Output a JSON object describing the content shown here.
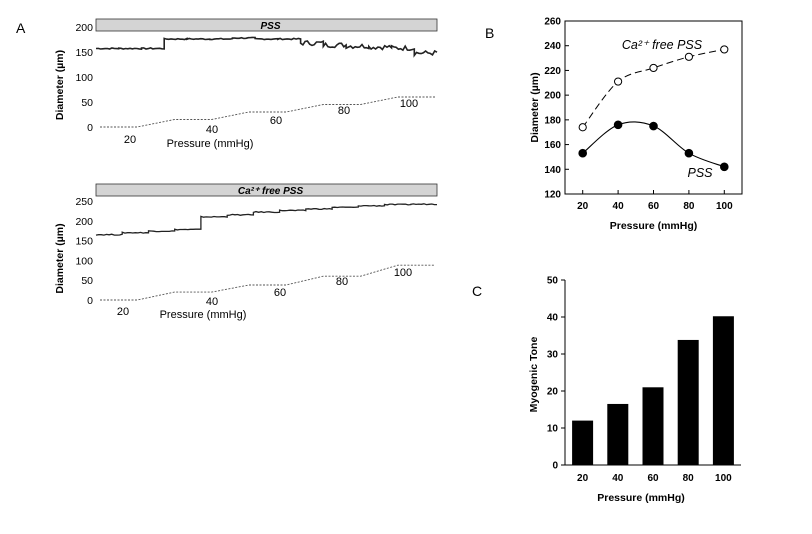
{
  "panels": {
    "a_label": "A",
    "b_label": "B",
    "c_label": "C"
  },
  "colors": {
    "trace": "#222222",
    "pressure_step": "#555555",
    "banner_fill": "#d4d4d4",
    "bar_fill": "#000000"
  },
  "chart_data": [
    {
      "type": "line",
      "panel": "A",
      "title": "PSS",
      "ylabel": "Diameter (µm)",
      "xlabel": "Pressure (mmHg)",
      "yticks": [
        0,
        50,
        100,
        150,
        200
      ],
      "ylim": [
        0,
        200
      ],
      "pressure_labels": [
        "20",
        "40",
        "60",
        "80",
        "100"
      ],
      "series": [
        {
          "values": [
            157,
            157,
            157,
            176,
            176,
            176,
            178,
            176,
            176,
            168,
            164,
            162,
            160,
            158,
            148
          ]
        },
        {
          "values": [
            0,
            0,
            15,
            15,
            30,
            30,
            45,
            45,
            60,
            60
          ]
        }
      ]
    },
    {
      "type": "line",
      "panel": "A",
      "title": "Ca²⁺ free PSS",
      "ylabel": "Diameter (µm)",
      "xlabel": "Pressure (mmHg)",
      "yticks": [
        0,
        50,
        100,
        150,
        200,
        250
      ],
      "ylim": [
        0,
        250
      ],
      "pressure_labels": [
        "20",
        "40",
        "60",
        "80",
        "100"
      ],
      "series": [
        {
          "values": [
            165,
            170,
            174,
            178,
            210,
            215,
            222,
            226,
            230,
            234,
            238,
            241,
            242
          ]
        },
        {
          "values": [
            0,
            0,
            20,
            20,
            38,
            38,
            60,
            60,
            88,
            88
          ]
        }
      ]
    },
    {
      "type": "line",
      "panel": "B",
      "xlabel": "Pressure (mmHg)",
      "ylabel": "Diameter (µm)",
      "x": [
        20,
        40,
        60,
        80,
        100
      ],
      "xlim": [
        10,
        110
      ],
      "ylim": [
        120,
        260
      ],
      "yticks": [
        120,
        140,
        160,
        180,
        200,
        220,
        240,
        260
      ],
      "series": [
        {
          "name": "Ca²⁺ free PSS",
          "values": [
            174,
            211,
            222,
            231,
            237
          ]
        },
        {
          "name": "PSS",
          "values": [
            153,
            176,
            175,
            153,
            142
          ]
        }
      ]
    },
    {
      "type": "bar",
      "panel": "C",
      "xlabel": "Pressure (mmHg)",
      "ylabel": "Myogenic Tone",
      "categories": [
        "20",
        "40",
        "60",
        "80",
        "100"
      ],
      "values": [
        12,
        16.5,
        21,
        33.8,
        40.2
      ],
      "ylim": [
        0,
        50
      ],
      "yticks": [
        0,
        10,
        20,
        30,
        40,
        50
      ]
    }
  ]
}
